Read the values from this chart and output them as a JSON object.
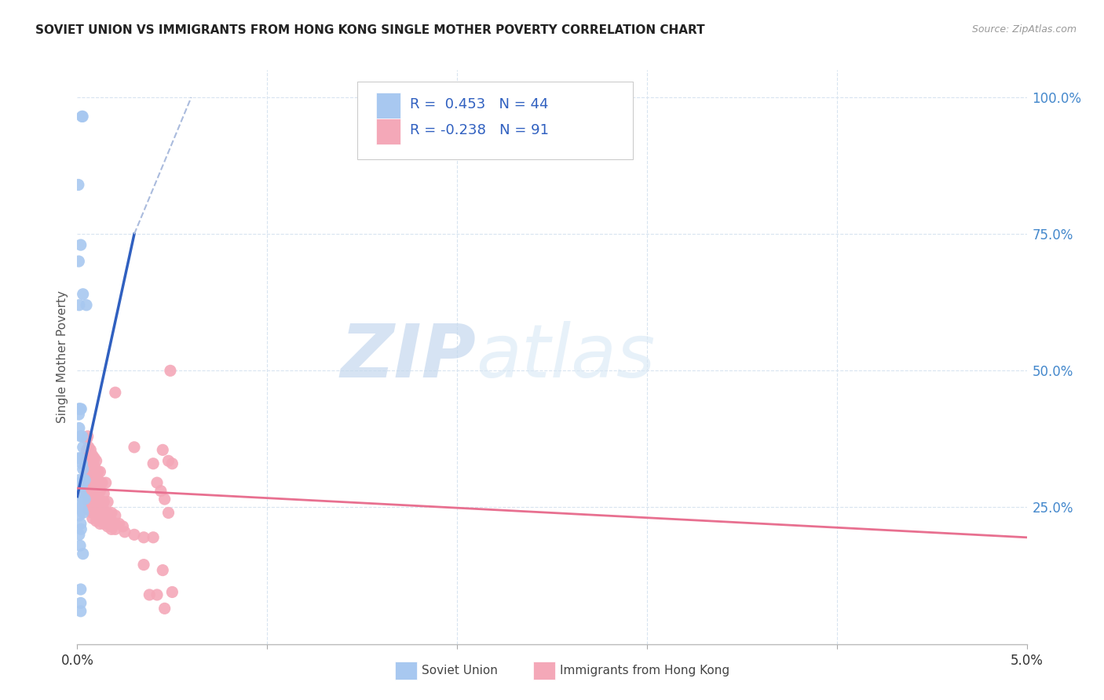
{
  "title": "SOVIET UNION VS IMMIGRANTS FROM HONG KONG SINGLE MOTHER POVERTY CORRELATION CHART",
  "source": "Source: ZipAtlas.com",
  "ylabel": "Single Mother Poverty",
  "ylabel_right_ticks": [
    "100.0%",
    "75.0%",
    "50.0%",
    "25.0%"
  ],
  "ylabel_right_vals": [
    1.0,
    0.75,
    0.5,
    0.25
  ],
  "xmin": 0.0,
  "xmax": 0.05,
  "ymin": 0.0,
  "ymax": 1.05,
  "r_soviet": 0.453,
  "n_soviet": 44,
  "r_hk": -0.238,
  "n_hk": 91,
  "soviet_color": "#a8c8f0",
  "hk_color": "#f4a8b8",
  "soviet_line_color": "#3060c0",
  "hk_line_color": "#e87090",
  "bg_color": "#ffffff",
  "watermark_zip": "ZIP",
  "watermark_atlas": "atlas",
  "grid_color": "#d8e4f0",
  "legend_color": "#3060c0",
  "su_line_x0": 0.0,
  "su_line_y0": 0.27,
  "su_line_x1": 0.003,
  "su_line_y1": 0.75,
  "su_line_dash_x0": 0.003,
  "su_line_dash_y0": 0.75,
  "su_line_dash_x1": 0.006,
  "su_line_dash_y1": 1.0,
  "hk_line_x0": 0.0,
  "hk_line_y0": 0.285,
  "hk_line_x1": 0.05,
  "hk_line_y1": 0.195,
  "soviet_points": [
    [
      0.00025,
      0.965
    ],
    [
      0.00028,
      0.965
    ],
    [
      6e-05,
      0.84
    ],
    [
      0.00018,
      0.73
    ],
    [
      0.0003,
      0.64
    ],
    [
      0.00048,
      0.62
    ],
    [
      8e-05,
      0.7
    ],
    [
      0.0001,
      0.62
    ],
    [
      8e-05,
      0.43
    ],
    [
      8e-05,
      0.42
    ],
    [
      0.0001,
      0.43
    ],
    [
      0.00015,
      0.43
    ],
    [
      0.0002,
      0.43
    ],
    [
      0.0001,
      0.395
    ],
    [
      0.00018,
      0.38
    ],
    [
      0.00025,
      0.38
    ],
    [
      0.0003,
      0.36
    ],
    [
      8e-05,
      0.34
    ],
    [
      0.00018,
      0.34
    ],
    [
      0.00025,
      0.33
    ],
    [
      0.0003,
      0.32
    ],
    [
      0.0001,
      0.3
    ],
    [
      0.00018,
      0.295
    ],
    [
      0.00025,
      0.29
    ],
    [
      0.00035,
      0.3
    ],
    [
      0.0004,
      0.3
    ],
    [
      0.0001,
      0.285
    ],
    [
      0.00018,
      0.275
    ],
    [
      0.00025,
      0.27
    ],
    [
      0.0003,
      0.265
    ],
    [
      0.0004,
      0.265
    ],
    [
      0.0001,
      0.255
    ],
    [
      0.00018,
      0.25
    ],
    [
      0.00025,
      0.245
    ],
    [
      0.0003,
      0.24
    ],
    [
      0.0001,
      0.235
    ],
    [
      0.00018,
      0.22
    ],
    [
      0.0002,
      0.21
    ],
    [
      0.0001,
      0.2
    ],
    [
      0.00015,
      0.18
    ],
    [
      0.0003,
      0.165
    ],
    [
      0.00018,
      0.1
    ],
    [
      0.00018,
      0.075
    ],
    [
      0.00018,
      0.06
    ]
  ],
  "hk_points": [
    [
      0.0005,
      0.375
    ],
    [
      0.00055,
      0.38
    ],
    [
      0.0006,
      0.36
    ],
    [
      0.00065,
      0.35
    ],
    [
      0.0007,
      0.355
    ],
    [
      0.0008,
      0.345
    ],
    [
      0.0005,
      0.355
    ],
    [
      0.0006,
      0.34
    ],
    [
      0.0007,
      0.335
    ],
    [
      0.0008,
      0.335
    ],
    [
      0.0009,
      0.34
    ],
    [
      0.001,
      0.335
    ],
    [
      0.0005,
      0.34
    ],
    [
      0.0006,
      0.325
    ],
    [
      0.00065,
      0.325
    ],
    [
      0.0007,
      0.32
    ],
    [
      0.0008,
      0.32
    ],
    [
      0.0009,
      0.325
    ],
    [
      0.001,
      0.315
    ],
    [
      0.0011,
      0.315
    ],
    [
      0.0012,
      0.315
    ],
    [
      0.0006,
      0.31
    ],
    [
      0.0007,
      0.305
    ],
    [
      0.0008,
      0.305
    ],
    [
      0.0009,
      0.305
    ],
    [
      0.001,
      0.3
    ],
    [
      0.0011,
      0.3
    ],
    [
      0.0013,
      0.295
    ],
    [
      0.0015,
      0.295
    ],
    [
      0.00055,
      0.295
    ],
    [
      0.00065,
      0.29
    ],
    [
      0.0007,
      0.285
    ],
    [
      0.0008,
      0.285
    ],
    [
      0.0009,
      0.28
    ],
    [
      0.001,
      0.28
    ],
    [
      0.0012,
      0.28
    ],
    [
      0.0014,
      0.275
    ],
    [
      0.00055,
      0.275
    ],
    [
      0.0006,
      0.27
    ],
    [
      0.0007,
      0.27
    ],
    [
      0.0008,
      0.265
    ],
    [
      0.001,
      0.265
    ],
    [
      0.0012,
      0.26
    ],
    [
      0.0014,
      0.26
    ],
    [
      0.0016,
      0.26
    ],
    [
      0.0006,
      0.26
    ],
    [
      0.0007,
      0.255
    ],
    [
      0.0008,
      0.25
    ],
    [
      0.001,
      0.25
    ],
    [
      0.0012,
      0.245
    ],
    [
      0.0014,
      0.245
    ],
    [
      0.0016,
      0.24
    ],
    [
      0.0018,
      0.24
    ],
    [
      0.002,
      0.235
    ],
    [
      0.0006,
      0.245
    ],
    [
      0.0008,
      0.24
    ],
    [
      0.001,
      0.235
    ],
    [
      0.0012,
      0.235
    ],
    [
      0.0014,
      0.23
    ],
    [
      0.0016,
      0.23
    ],
    [
      0.0018,
      0.225
    ],
    [
      0.002,
      0.22
    ],
    [
      0.0022,
      0.22
    ],
    [
      0.0024,
      0.215
    ],
    [
      0.0008,
      0.23
    ],
    [
      0.001,
      0.225
    ],
    [
      0.0012,
      0.22
    ],
    [
      0.0014,
      0.22
    ],
    [
      0.0016,
      0.215
    ],
    [
      0.0018,
      0.21
    ],
    [
      0.002,
      0.21
    ],
    [
      0.0025,
      0.205
    ],
    [
      0.003,
      0.2
    ],
    [
      0.0035,
      0.195
    ],
    [
      0.004,
      0.195
    ],
    [
      0.002,
      0.46
    ],
    [
      0.003,
      0.36
    ],
    [
      0.004,
      0.33
    ],
    [
      0.0045,
      0.355
    ],
    [
      0.0048,
      0.335
    ],
    [
      0.005,
      0.33
    ],
    [
      0.0042,
      0.295
    ],
    [
      0.0044,
      0.28
    ],
    [
      0.0046,
      0.265
    ],
    [
      0.0048,
      0.24
    ],
    [
      0.0035,
      0.145
    ],
    [
      0.0045,
      0.135
    ],
    [
      0.0038,
      0.09
    ],
    [
      0.0042,
      0.09
    ],
    [
      0.005,
      0.095
    ],
    [
      0.0046,
      0.065
    ],
    [
      0.0049,
      0.5
    ]
  ]
}
